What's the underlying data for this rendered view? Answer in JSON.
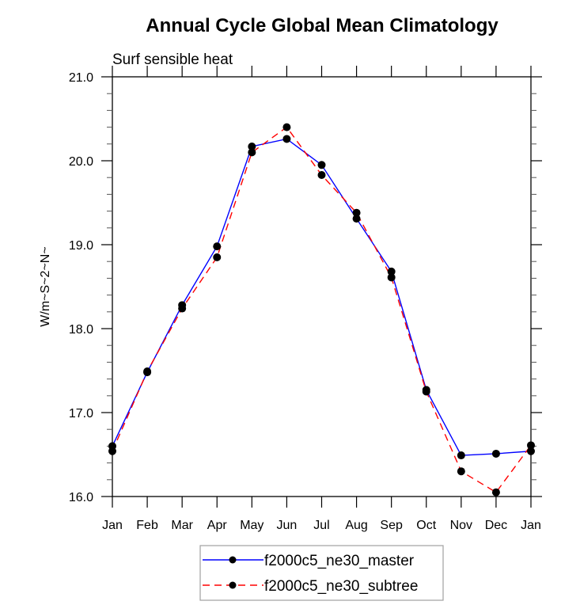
{
  "chart_data": {
    "type": "line",
    "title": "Annual Cycle Global Mean Climatology",
    "subtitle": "Surf sensible heat",
    "xlabel": "",
    "ylabel": "W/m~S~2~N~",
    "categories": [
      "Jan",
      "Feb",
      "Mar",
      "Apr",
      "May",
      "Jun",
      "Jul",
      "Aug",
      "Sep",
      "Oct",
      "Nov",
      "Dec",
      "Jan"
    ],
    "ylim": [
      16.0,
      21.0
    ],
    "yticks": [
      "16.0",
      "17.0",
      "18.0",
      "19.0",
      "20.0",
      "21.0"
    ],
    "yminor_step": 0.2,
    "grid": false,
    "legend_position": "bottom-center",
    "series": [
      {
        "name": "f2000c5_ne30_master",
        "color": "#0000ff",
        "line_style": "solid",
        "marker": "filled-circle",
        "values": [
          16.6,
          17.48,
          18.28,
          18.98,
          20.17,
          20.26,
          19.95,
          19.31,
          18.68,
          17.27,
          16.49,
          16.51,
          16.54
        ]
      },
      {
        "name": "f2000c5_ne30_subtree",
        "color": "#ff0000",
        "line_style": "dashed",
        "marker": "filled-circle",
        "values": [
          16.54,
          17.49,
          18.24,
          18.85,
          20.1,
          20.4,
          19.83,
          19.38,
          18.61,
          17.25,
          16.3,
          16.05,
          16.61
        ]
      }
    ]
  }
}
